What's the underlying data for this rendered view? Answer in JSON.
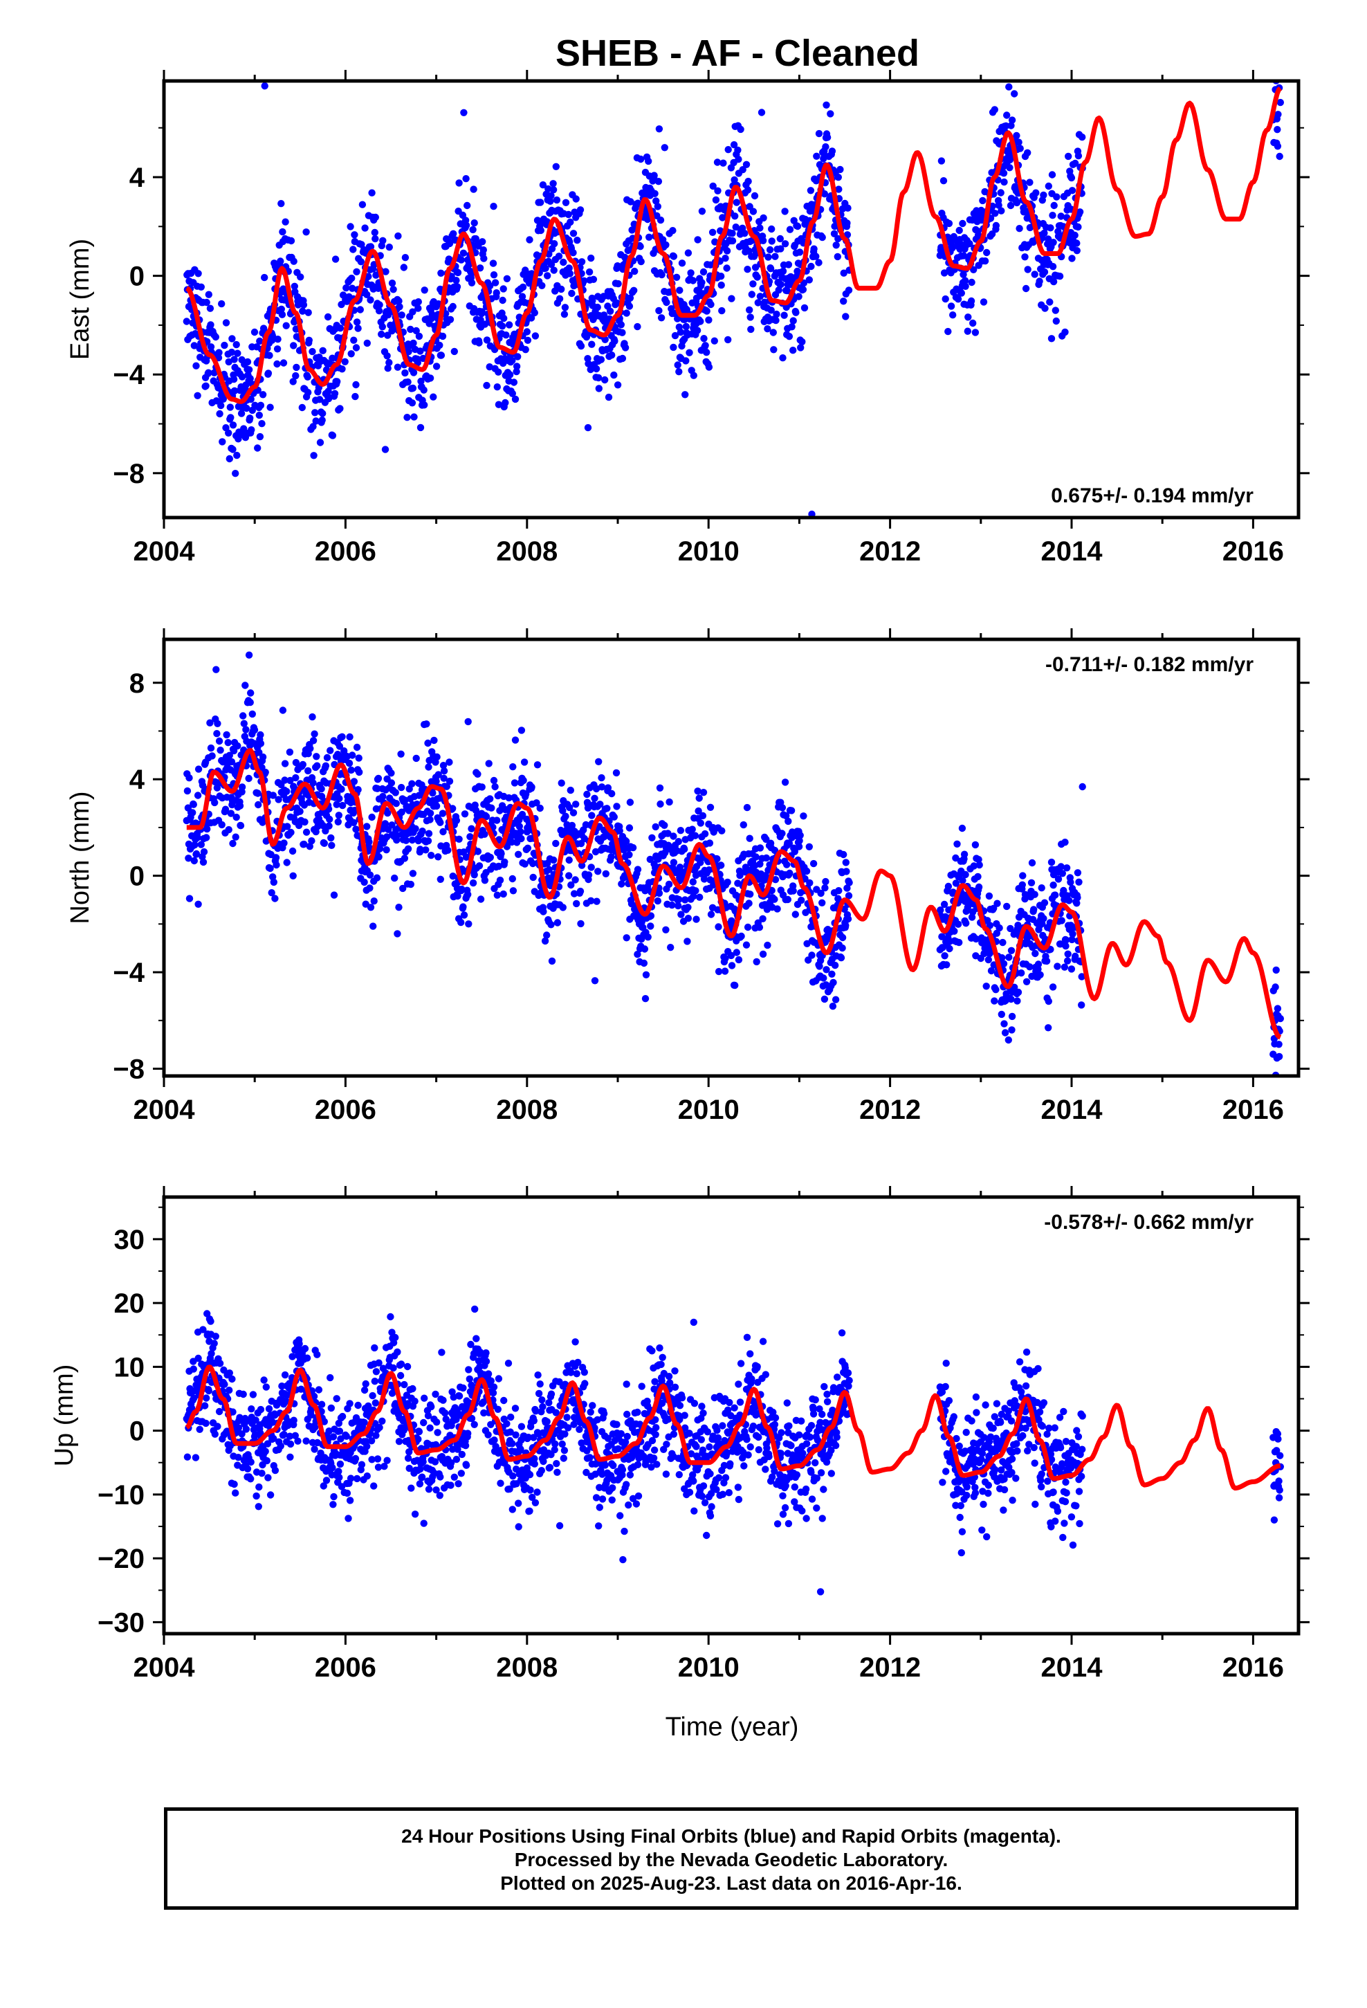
{
  "title": "SHEB  - AF - Cleaned",
  "xlabel": "Time (year)",
  "x_ticks": [
    "2004",
    "2006",
    "2008",
    "2010",
    "2012",
    "2014",
    "2016"
  ],
  "colors": {
    "data_points": "#0000ff",
    "model_curve": "#ff0000",
    "axes": "#000000"
  },
  "chart_data": [
    {
      "type": "scatter",
      "component": "east",
      "ylabel": "East (mm)",
      "rate": "0.675+/- 0.194 mm/yr",
      "rate_position": "bottom-right",
      "xlim": [
        2004.0,
        2016.5
      ],
      "ylim": [
        -9.8,
        7.9
      ],
      "y_ticks": [
        "−8",
        "−4",
        "0",
        "4"
      ],
      "y_tick_values": [
        -8,
        -4,
        0,
        4
      ],
      "model": {
        "series": "seasonal-trend",
        "x": [
          2004.25,
          2004.5,
          2004.75,
          2004.85,
          2005.0,
          2005.15,
          2005.3,
          2005.45,
          2005.6,
          2005.75,
          2005.9,
          2006.1,
          2006.3,
          2006.5,
          2006.7,
          2006.85,
          2007.0,
          2007.15,
          2007.3,
          2007.5,
          2007.7,
          2007.85,
          2008.0,
          2008.15,
          2008.3,
          2008.5,
          2008.7,
          2008.85,
          2009.0,
          2009.15,
          2009.3,
          2009.5,
          2009.7,
          2009.85,
          2010.0,
          2010.15,
          2010.3,
          2010.5,
          2010.7,
          2010.85,
          2011.0,
          2011.15,
          2011.3,
          2011.5,
          2011.65,
          2011.85,
          2012.0,
          2012.15,
          2012.3,
          2012.5,
          2012.7,
          2012.85,
          2013.0,
          2013.15,
          2013.3,
          2013.5,
          2013.7,
          2013.85,
          2014.0,
          2014.15,
          2014.3,
          2014.5,
          2014.7,
          2014.85,
          2015.0,
          2015.15,
          2015.3,
          2015.5,
          2015.7,
          2015.85,
          2016.0,
          2016.15,
          2016.3
        ],
        "y": [
          -0.5,
          -3.2,
          -5.0,
          -5.1,
          -4.5,
          -2.3,
          0.3,
          -1.5,
          -3.8,
          -4.4,
          -3.6,
          -1.0,
          1.0,
          -1.2,
          -3.6,
          -3.8,
          -2.4,
          0.3,
          1.7,
          -0.3,
          -2.9,
          -3.1,
          -1.5,
          0.6,
          2.3,
          0.6,
          -2.2,
          -2.4,
          -1.6,
          0.8,
          3.1,
          0.9,
          -1.6,
          -1.6,
          -0.8,
          1.6,
          3.6,
          1.6,
          -1.0,
          -1.1,
          -0.2,
          2.2,
          4.5,
          1.5,
          -0.5,
          -0.5,
          0.6,
          3.4,
          5.0,
          2.4,
          0.4,
          0.3,
          1.4,
          4.0,
          5.8,
          3.0,
          0.9,
          0.9,
          2.3,
          4.6,
          6.4,
          3.5,
          1.6,
          1.7,
          3.2,
          5.5,
          7.0,
          4.3,
          2.3,
          2.3,
          3.8,
          5.9,
          7.6
        ]
      },
      "observations": {
        "series": "daily-positions",
        "segments": [
          {
            "start": 2004.25,
            "end": 2011.55
          },
          {
            "start": 2012.55,
            "end": 2014.12
          },
          {
            "start": 2016.22,
            "end": 2016.3
          }
        ],
        "scatter_sigma": 1.3
      }
    },
    {
      "type": "scatter",
      "component": "north",
      "ylabel": "North (mm)",
      "rate": "-0.711+/- 0.182 mm/yr",
      "rate_position": "top-right",
      "xlim": [
        2004.0,
        2016.5
      ],
      "ylim": [
        -8.3,
        9.8
      ],
      "y_ticks": [
        "−8",
        "−4",
        "0",
        "4",
        "8"
      ],
      "y_tick_values": [
        -8,
        -4,
        0,
        4,
        8
      ],
      "model": {
        "series": "seasonal-trend",
        "x": [
          2004.25,
          2004.4,
          2004.55,
          2004.75,
          2004.95,
          2005.05,
          2005.2,
          2005.35,
          2005.55,
          2005.75,
          2005.95,
          2006.1,
          2006.25,
          2006.45,
          2006.65,
          2006.8,
          2006.95,
          2007.05,
          2007.3,
          2007.5,
          2007.7,
          2007.9,
          2008.0,
          2008.25,
          2008.45,
          2008.6,
          2008.8,
          2008.95,
          2009.05,
          2009.3,
          2009.5,
          2009.7,
          2009.9,
          2010.0,
          2010.25,
          2010.45,
          2010.6,
          2010.8,
          2010.95,
          2011.05,
          2011.3,
          2011.5,
          2011.7,
          2011.9,
          2012.0,
          2012.25,
          2012.45,
          2012.6,
          2012.8,
          2012.95,
          2013.05,
          2013.3,
          2013.5,
          2013.7,
          2013.9,
          2014.0,
          2014.25,
          2014.45,
          2014.6,
          2014.8,
          2014.95,
          2015.05,
          2015.3,
          2015.5,
          2015.7,
          2015.9,
          2016.0,
          2016.3
        ],
        "y": [
          2.0,
          2.0,
          4.3,
          3.5,
          5.2,
          4.3,
          1.3,
          2.8,
          3.8,
          2.8,
          4.6,
          3.4,
          0.5,
          3.0,
          2.0,
          2.8,
          3.7,
          3.6,
          -0.3,
          2.3,
          1.2,
          3.0,
          2.8,
          -0.9,
          1.6,
          0.6,
          2.4,
          1.8,
          0.5,
          -1.6,
          0.4,
          -0.5,
          1.3,
          0.8,
          -2.5,
          0.0,
          -0.8,
          1.0,
          0.6,
          -0.5,
          -3.2,
          -1.0,
          -1.8,
          0.2,
          0.0,
          -3.9,
          -1.3,
          -2.3,
          -0.4,
          -1.0,
          -2.2,
          -4.6,
          -2.1,
          -3.0,
          -1.2,
          -1.5,
          -5.1,
          -2.8,
          -3.7,
          -1.9,
          -2.5,
          -3.6,
          -6.0,
          -3.5,
          -4.4,
          -2.6,
          -3.2,
          -6.7
        ]
      },
      "observations": {
        "series": "daily-positions",
        "segments": [
          {
            "start": 2004.25,
            "end": 2011.55
          },
          {
            "start": 2012.55,
            "end": 2014.12
          },
          {
            "start": 2016.22,
            "end": 2016.3
          }
        ],
        "scatter_sigma": 1.2
      }
    },
    {
      "type": "scatter",
      "component": "up",
      "ylabel": "Up (mm)",
      "rate": "-0.578+/- 0.662 mm/yr",
      "rate_position": "top-right",
      "xlim": [
        2004.0,
        2016.5
      ],
      "ylim": [
        -31.8,
        36.6
      ],
      "y_ticks": [
        "−30",
        "−20",
        "−10",
        "0",
        "10",
        "20",
        "30"
      ],
      "y_tick_values": [
        -30,
        -20,
        -10,
        0,
        10,
        20,
        30
      ],
      "model": {
        "series": "seasonal-trend",
        "x": [
          2004.25,
          2004.35,
          2004.5,
          2004.65,
          2004.8,
          2005.0,
          2005.2,
          2005.35,
          2005.5,
          2005.65,
          2005.8,
          2006.0,
          2006.2,
          2006.35,
          2006.5,
          2006.65,
          2006.8,
          2007.0,
          2007.2,
          2007.35,
          2007.5,
          2007.65,
          2007.8,
          2008.0,
          2008.2,
          2008.35,
          2008.5,
          2008.65,
          2008.8,
          2009.0,
          2009.2,
          2009.35,
          2009.5,
          2009.65,
          2009.8,
          2010.0,
          2010.2,
          2010.35,
          2010.5,
          2010.65,
          2010.8,
          2011.0,
          2011.2,
          2011.35,
          2011.5,
          2011.65,
          2011.8,
          2012.0,
          2012.2,
          2012.35,
          2012.5,
          2012.65,
          2012.8,
          2013.0,
          2013.2,
          2013.35,
          2013.5,
          2013.65,
          2013.8,
          2014.0,
          2014.2,
          2014.35,
          2014.5,
          2014.65,
          2014.8,
          2015.0,
          2015.2,
          2015.35,
          2015.5,
          2015.65,
          2015.8,
          2016.0,
          2016.3
        ],
        "y": [
          0.5,
          3.0,
          10.0,
          5.0,
          -2.0,
          -2.0,
          0.0,
          3.0,
          9.5,
          4.0,
          -2.5,
          -2.5,
          -0.5,
          3.0,
          9.0,
          3.0,
          -3.5,
          -3.0,
          -1.5,
          2.5,
          8.0,
          2.0,
          -4.5,
          -4.0,
          -1.5,
          2.0,
          7.5,
          1.5,
          -4.5,
          -4.0,
          -2.0,
          2.0,
          7.0,
          1.0,
          -5.0,
          -5.0,
          -2.5,
          1.0,
          6.5,
          0.5,
          -6.0,
          -5.5,
          -3.0,
          0.5,
          6.0,
          0.0,
          -6.5,
          -6.0,
          -3.5,
          0.0,
          5.5,
          -1.0,
          -7.0,
          -6.5,
          -4.0,
          -0.5,
          5.0,
          -1.5,
          -7.5,
          -7.0,
          -4.5,
          -1.0,
          4.0,
          -2.5,
          -8.5,
          -7.5,
          -5.0,
          -1.5,
          3.5,
          -3.0,
          -9.0,
          -8.0,
          -5.5
        ]
      },
      "observations": {
        "series": "daily-positions",
        "segments": [
          {
            "start": 2004.25,
            "end": 2011.55
          },
          {
            "start": 2012.55,
            "end": 2014.12
          },
          {
            "start": 2016.22,
            "end": 2016.3
          }
        ],
        "scatter_sigma": 4.2
      }
    }
  ],
  "footer": {
    "line1": "24 Hour Positions Using Final Orbits (blue) and Rapid Orbits (magenta).",
    "line2": "Processed by the Nevada Geodetic Laboratory.",
    "line3": "Plotted on 2025-Aug-23. Last data on 2016-Apr-16."
  }
}
